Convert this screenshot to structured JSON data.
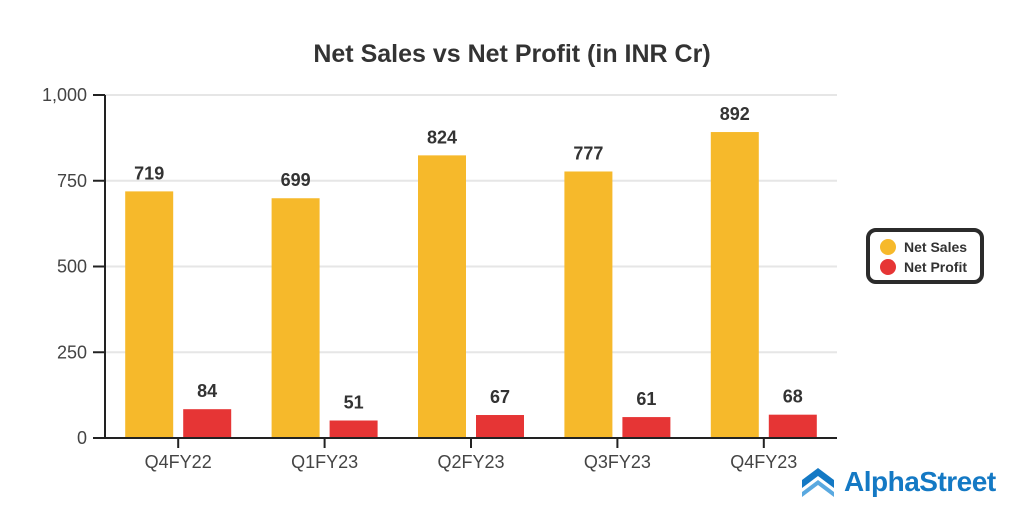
{
  "chart_data": {
    "type": "bar",
    "title": "Net Sales vs Net Profit (in INR Cr)",
    "categories": [
      "Q4FY22",
      "Q1FY23",
      "Q2FY23",
      "Q3FY23",
      "Q4FY23"
    ],
    "series": [
      {
        "name": "Net Sales",
        "color": "#F6B92B",
        "values": [
          719,
          699,
          824,
          777,
          892
        ]
      },
      {
        "name": "Net Profit",
        "color": "#E63535",
        "values": [
          84,
          51,
          67,
          61,
          68
        ]
      }
    ],
    "ylim": [
      0,
      1000
    ],
    "yticks": [
      0,
      250,
      500,
      750,
      1000
    ],
    "ytick_labels": [
      "0",
      "250",
      "500",
      "750",
      "1,000"
    ],
    "xlabel": "",
    "ylabel": "",
    "grid": true,
    "legend_position": "right"
  },
  "brand": {
    "name": "AlphaStreet",
    "color": "#1479c4"
  }
}
